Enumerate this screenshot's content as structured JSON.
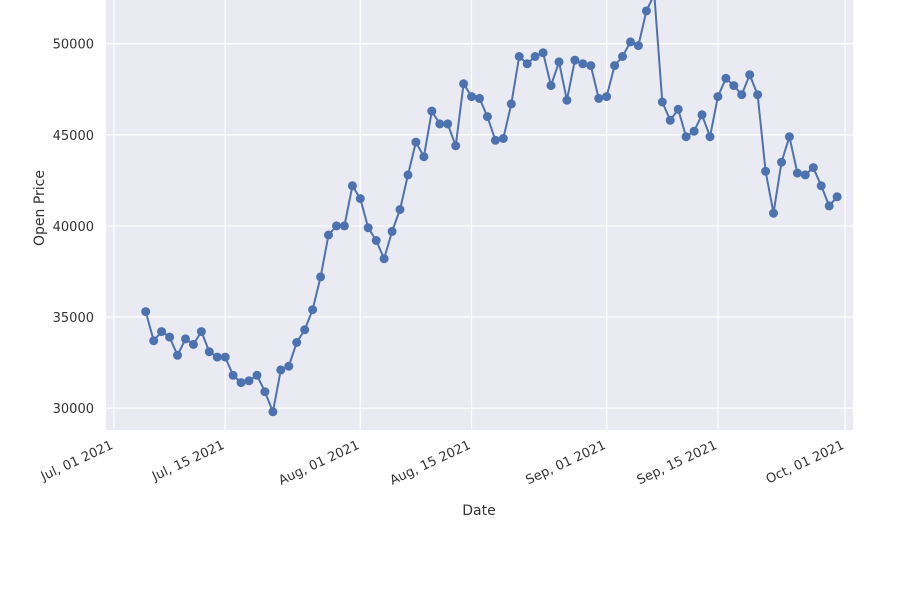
{
  "chart_data": {
    "type": "line",
    "xlabel": "Date",
    "ylabel": "Open Price",
    "ylim": [
      28800,
      52400
    ],
    "xlim": [
      "2021-06-30",
      "2021-10-02"
    ],
    "grid": true,
    "markers": true,
    "colors": {
      "line": "#4c72b0",
      "plot_bg": "#eaeaf2",
      "grid": "#ffffff"
    },
    "x_ticks": [
      {
        "date": "2021-07-01",
        "label": "Jul, 01 2021"
      },
      {
        "date": "2021-07-15",
        "label": "Jul, 15 2021"
      },
      {
        "date": "2021-08-01",
        "label": "Aug, 01 2021"
      },
      {
        "date": "2021-08-15",
        "label": "Aug, 15 2021"
      },
      {
        "date": "2021-09-01",
        "label": "Sep, 01 2021"
      },
      {
        "date": "2021-09-15",
        "label": "Sep, 15 2021"
      },
      {
        "date": "2021-10-01",
        "label": "Oct, 01 2021"
      }
    ],
    "y_ticks": [
      {
        "value": 30000,
        "label": "30000"
      },
      {
        "value": 35000,
        "label": "35000"
      },
      {
        "value": 40000,
        "label": "40000"
      },
      {
        "value": 45000,
        "label": "45000"
      },
      {
        "value": 50000,
        "label": "50000"
      }
    ],
    "series": [
      {
        "x": [
          "2021-07-05",
          "2021-07-06",
          "2021-07-07",
          "2021-07-08",
          "2021-07-09",
          "2021-07-10",
          "2021-07-11",
          "2021-07-12",
          "2021-07-13",
          "2021-07-14",
          "2021-07-15",
          "2021-07-16",
          "2021-07-17",
          "2021-07-18",
          "2021-07-19",
          "2021-07-20",
          "2021-07-21",
          "2021-07-22",
          "2021-07-23",
          "2021-07-24",
          "2021-07-25",
          "2021-07-26",
          "2021-07-27",
          "2021-07-28",
          "2021-07-29",
          "2021-07-30",
          "2021-07-31",
          "2021-08-01",
          "2021-08-02",
          "2021-08-03",
          "2021-08-04",
          "2021-08-05",
          "2021-08-06",
          "2021-08-07",
          "2021-08-08",
          "2021-08-09",
          "2021-08-10",
          "2021-08-11",
          "2021-08-12",
          "2021-08-13",
          "2021-08-14",
          "2021-08-15",
          "2021-08-16",
          "2021-08-17",
          "2021-08-18",
          "2021-08-19",
          "2021-08-20",
          "2021-08-21",
          "2021-08-22",
          "2021-08-23",
          "2021-08-24",
          "2021-08-25",
          "2021-08-26",
          "2021-08-27",
          "2021-08-28",
          "2021-08-29",
          "2021-08-30",
          "2021-08-31",
          "2021-09-01",
          "2021-09-02",
          "2021-09-03",
          "2021-09-04",
          "2021-09-05",
          "2021-09-06",
          "2021-09-07",
          "2021-09-08",
          "2021-09-09",
          "2021-09-10",
          "2021-09-11",
          "2021-09-12",
          "2021-09-13",
          "2021-09-14",
          "2021-09-15",
          "2021-09-16",
          "2021-09-17",
          "2021-09-18",
          "2021-09-19",
          "2021-09-20",
          "2021-09-21",
          "2021-09-22",
          "2021-09-23",
          "2021-09-24",
          "2021-09-25",
          "2021-09-26",
          "2021-09-27",
          "2021-09-28",
          "2021-09-29",
          "2021-09-30"
        ],
        "y": [
          35300,
          33700,
          34200,
          33900,
          32900,
          33800,
          33500,
          34200,
          33100,
          32800,
          32800,
          31800,
          31400,
          31500,
          31800,
          30900,
          29800,
          32100,
          32300,
          33600,
          34300,
          35400,
          37200,
          39500,
          40000,
          40000,
          42200,
          41500,
          39900,
          39200,
          38200,
          39700,
          40900,
          42800,
          44600,
          43800,
          46300,
          45600,
          45600,
          44400,
          47800,
          47100,
          47000,
          46000,
          44700,
          44800,
          46700,
          49300,
          48900,
          49300,
          49500,
          47700,
          49000,
          46900,
          49100,
          48900,
          48800,
          47000,
          47100,
          48800,
          49300,
          50100,
          49900,
          51800,
          52700,
          46800,
          45800,
          46400,
          44900,
          45200,
          46100,
          44900,
          47100,
          48100,
          47700,
          47200,
          48300,
          47200,
          43000,
          40700,
          43500,
          44900,
          42900,
          42800,
          43200,
          42200,
          41100,
          41600
        ]
      }
    ]
  }
}
